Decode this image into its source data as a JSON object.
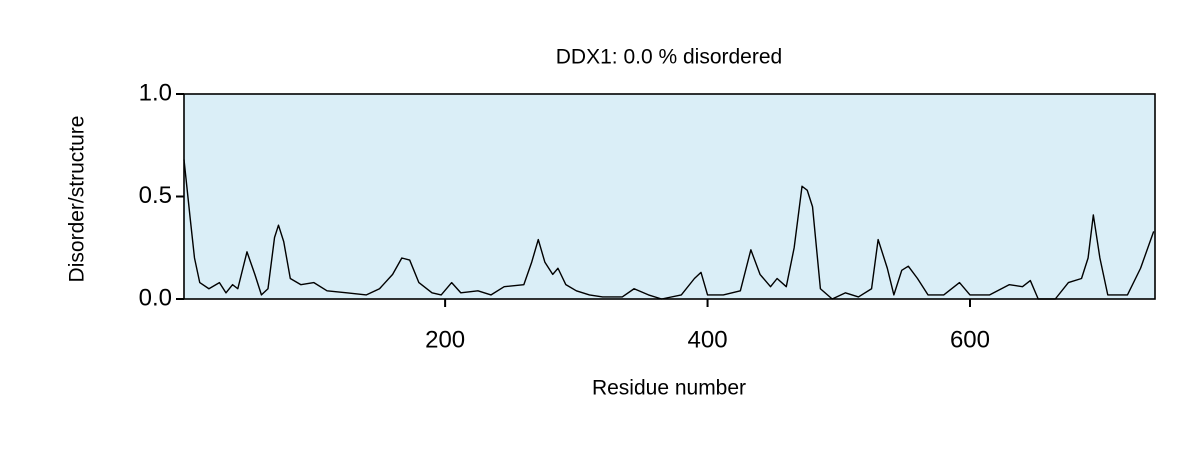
{
  "chart_data": {
    "type": "line",
    "title": "DDX1: 0.0 % disordered",
    "xlabel": "Residue number",
    "ylabel": "Disorder/structure",
    "background": "#daeef7",
    "xlim": [
      1,
      741
    ],
    "ylim": [
      0,
      1
    ],
    "xticks": [
      200,
      400,
      600
    ],
    "yticks": [
      {
        "value": 0,
        "label": "0.0"
      },
      {
        "value": 0.5,
        "label": "0.5"
      },
      {
        "value": 1,
        "label": "1.0"
      }
    ],
    "series": [
      {
        "color": "#000000",
        "x": [
          1,
          5.6,
          9,
          13,
          20,
          28,
          33,
          38,
          42,
          49,
          55,
          60,
          65,
          70,
          73,
          77,
          82,
          90,
          100,
          110,
          125,
          140,
          150,
          160,
          167,
          173,
          180,
          190,
          197,
          205,
          212,
          225,
          235,
          245,
          260,
          266,
          271,
          276,
          282,
          286,
          292,
          300,
          310,
          320,
          335,
          344,
          355,
          365,
          380,
          390,
          395,
          400,
          412,
          425,
          433,
          440,
          448,
          453,
          460,
          466,
          472,
          476,
          480,
          486,
          495,
          505,
          515,
          525,
          530,
          537,
          542,
          548,
          553,
          560,
          568,
          580,
          592,
          600,
          615,
          630,
          640,
          646,
          652,
          665,
          675,
          685,
          690,
          694,
          699,
          705,
          720,
          730,
          740
        ],
        "values": [
          0.68,
          0.4,
          0.2,
          0.08,
          0.05,
          0.08,
          0.03,
          0.07,
          0.05,
          0.23,
          0.12,
          0.02,
          0.05,
          0.3,
          0.36,
          0.28,
          0.1,
          0.07,
          0.08,
          0.04,
          0.03,
          0.02,
          0.05,
          0.12,
          0.2,
          0.19,
          0.08,
          0.03,
          0.02,
          0.08,
          0.03,
          0.04,
          0.02,
          0.06,
          0.07,
          0.18,
          0.29,
          0.18,
          0.12,
          0.15,
          0.07,
          0.04,
          0.02,
          0.01,
          0.01,
          0.05,
          0.02,
          0.0,
          0.02,
          0.1,
          0.13,
          0.02,
          0.02,
          0.04,
          0.24,
          0.12,
          0.06,
          0.1,
          0.06,
          0.25,
          0.55,
          0.53,
          0.45,
          0.05,
          0.0,
          0.03,
          0.01,
          0.05,
          0.29,
          0.15,
          0.02,
          0.14,
          0.16,
          0.1,
          0.02,
          0.02,
          0.08,
          0.02,
          0.02,
          0.07,
          0.06,
          0.09,
          0.0,
          0.0,
          0.08,
          0.1,
          0.2,
          0.41,
          0.2,
          0.02,
          0.02,
          0.15,
          0.33
        ]
      }
    ]
  }
}
